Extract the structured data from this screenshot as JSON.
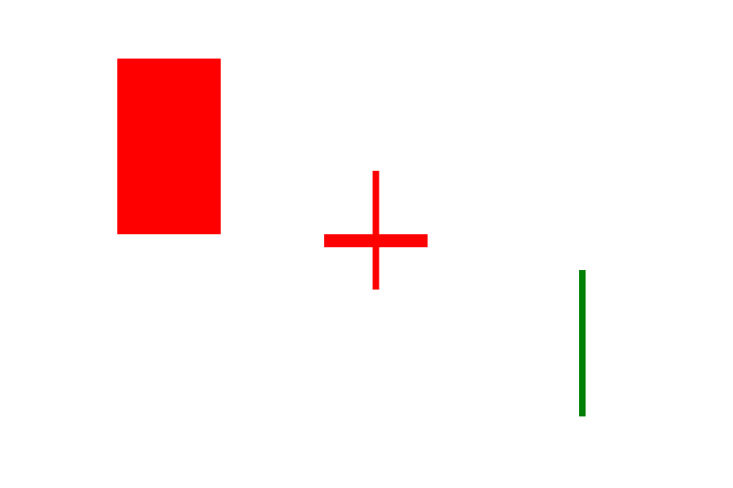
{
  "chart_data": {
    "type": "candlestick",
    "title": "",
    "xlabel": "",
    "ylabel": "",
    "axes_visible": false,
    "grid": false,
    "legend": "none",
    "ylim": [
      0,
      600
    ],
    "colors": {
      "down": "#ff0000",
      "up": "#008000",
      "background": "#ffffff"
    },
    "candles": [
      {
        "index": 1,
        "open": 528,
        "close": 312,
        "high": 528,
        "low": 312,
        "direction": "down"
      },
      {
        "index": 2,
        "open": 312,
        "close": 296,
        "high": 390,
        "low": 244,
        "direction": "down"
      },
      {
        "index": 3,
        "open": 268,
        "close": 268,
        "high": 268,
        "low": 88,
        "direction": "up"
      }
    ]
  }
}
